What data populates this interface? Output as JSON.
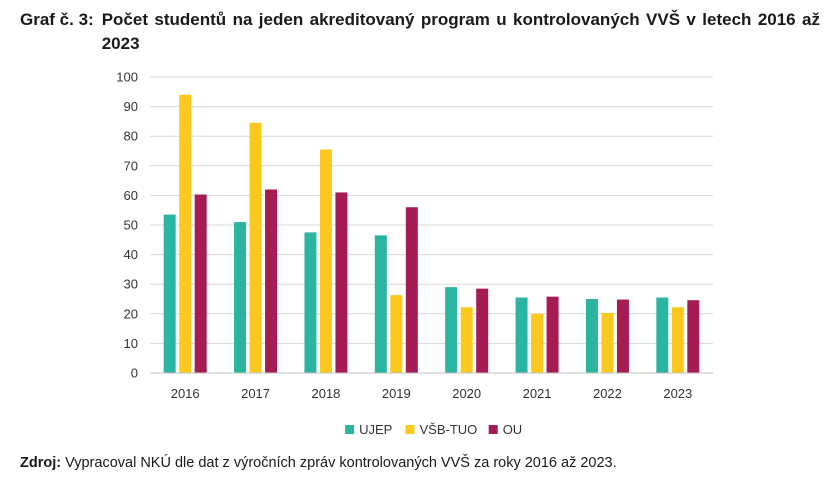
{
  "header": {
    "label": "Graf č. 3:",
    "title": "Počet studentů na jeden akreditovaný program u kontrolovaných VVŠ v letech 2016 až 2023"
  },
  "chart_data": {
    "type": "bar",
    "categories": [
      "2016",
      "2017",
      "2018",
      "2019",
      "2020",
      "2021",
      "2022",
      "2023"
    ],
    "series": [
      {
        "name": "UJEP",
        "color": "#2bb5a0",
        "values": [
          53.5,
          51,
          47.5,
          46.5,
          29,
          25.5,
          25,
          25.5
        ]
      },
      {
        "name": "VŠB-TUO",
        "color": "#fbc91d",
        "values": [
          94,
          84.5,
          75.5,
          26.3,
          22.2,
          20,
          20.3,
          22.2
        ]
      },
      {
        "name": "OU",
        "color": "#a51c54",
        "values": [
          60.3,
          62,
          61,
          56,
          28.5,
          25.8,
          24.8,
          24.6
        ]
      }
    ],
    "ylim": [
      0,
      100
    ],
    "yticks": [
      0,
      10,
      20,
      30,
      40,
      50,
      60,
      70,
      80,
      90,
      100
    ],
    "grid": true,
    "legend": "bottom"
  },
  "source": {
    "label": "Zdroj:",
    "text": "Vypracoval NKÚ dle dat z výročních zpráv kontrolovaných VVŠ za roky 2016 až 2023."
  }
}
